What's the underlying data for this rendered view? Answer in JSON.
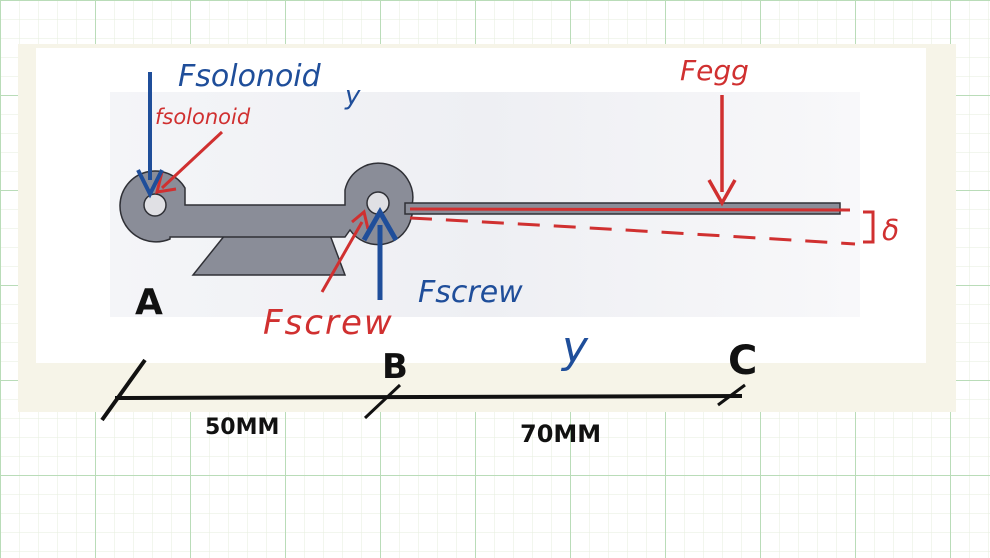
{
  "labels": {
    "f_solenoid_y": "Fsolonoid",
    "f_solenoid_y_sub": "y",
    "f_solenoid": "fsolonoid",
    "f_egg": "Fegg",
    "f_screw_red": "Fscrew",
    "f_screw_blue": "Fscrew",
    "f_screw_blue_sub": "y",
    "delta": "δ",
    "point_a": "A",
    "point_b": "B",
    "point_c": "C",
    "dim_ab": "50MM",
    "dim_bc": "70MM"
  },
  "colors": {
    "blue": "#1f4e9a",
    "red": "#d03030",
    "part_fill": "#8a8d98",
    "part_outline": "#2f3036",
    "grid_major": "#b9dcb8",
    "grid_minor": "#e6eedd",
    "paper": "#ffffff"
  }
}
